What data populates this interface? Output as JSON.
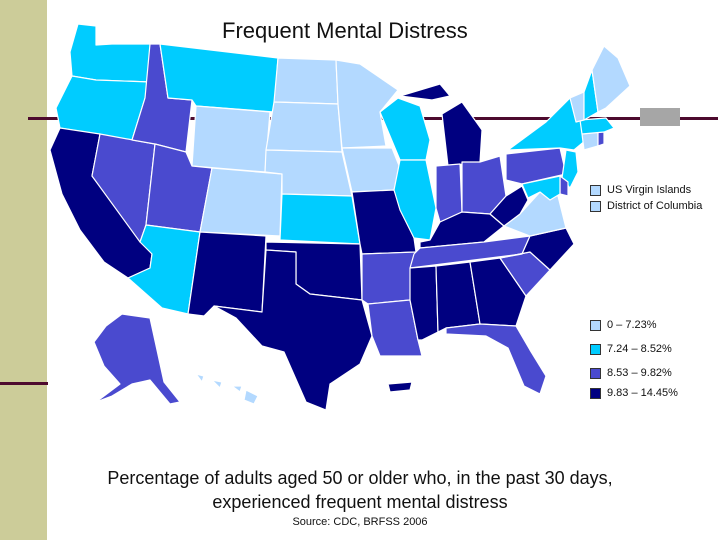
{
  "title": "Frequent Mental Distress",
  "caption": "Percentage of adults aged 50 or older who, in the past 30 days, experienced frequent mental distress",
  "source": "Source:  CDC, BRFSS 2006",
  "colors": {
    "class1": "#b3d9ff",
    "class2": "#00ccff",
    "class3": "#4a4acf",
    "class4": "#000080",
    "border": "#ffffff",
    "sidebar": "#cccc99",
    "rule": "#4d0a2e"
  },
  "territories": [
    {
      "label": "US Virgin Islands",
      "class": "class1"
    },
    {
      "label": "District of Columbia",
      "class": "class1"
    }
  ],
  "legend": [
    {
      "label": "0 – 7.23%",
      "class": "class1"
    },
    {
      "label": "7.24 – 8.52%",
      "class": "class2"
    },
    {
      "label": "8.53 – 9.82%",
      "class": "class3"
    },
    {
      "label": "9.83 – 14.45%",
      "class": "class4"
    }
  ],
  "states": [
    {
      "id": "WA",
      "class": "class2"
    },
    {
      "id": "OR",
      "class": "class2"
    },
    {
      "id": "CA",
      "class": "class4"
    },
    {
      "id": "NV",
      "class": "class3"
    },
    {
      "id": "ID",
      "class": "class3"
    },
    {
      "id": "MT",
      "class": "class2"
    },
    {
      "id": "WY",
      "class": "class1"
    },
    {
      "id": "UT",
      "class": "class3"
    },
    {
      "id": "AZ",
      "class": "class2"
    },
    {
      "id": "CO",
      "class": "class1"
    },
    {
      "id": "NM",
      "class": "class4"
    },
    {
      "id": "ND",
      "class": "class1"
    },
    {
      "id": "SD",
      "class": "class1"
    },
    {
      "id": "NE",
      "class": "class1"
    },
    {
      "id": "KS",
      "class": "class2"
    },
    {
      "id": "OK",
      "class": "class4"
    },
    {
      "id": "TX",
      "class": "class4"
    },
    {
      "id": "MN",
      "class": "class1"
    },
    {
      "id": "IA",
      "class": "class1"
    },
    {
      "id": "MO",
      "class": "class4"
    },
    {
      "id": "AR",
      "class": "class3"
    },
    {
      "id": "LA",
      "class": "class3"
    },
    {
      "id": "WI",
      "class": "class2"
    },
    {
      "id": "IL",
      "class": "class2"
    },
    {
      "id": "MI",
      "class": "class4"
    },
    {
      "id": "IN",
      "class": "class3"
    },
    {
      "id": "OH",
      "class": "class3"
    },
    {
      "id": "KY",
      "class": "class4"
    },
    {
      "id": "TN",
      "class": "class3"
    },
    {
      "id": "MS",
      "class": "class4"
    },
    {
      "id": "AL",
      "class": "class4"
    },
    {
      "id": "GA",
      "class": "class4"
    },
    {
      "id": "FL",
      "class": "class3"
    },
    {
      "id": "SC",
      "class": "class3"
    },
    {
      "id": "NC",
      "class": "class4"
    },
    {
      "id": "VA",
      "class": "class1"
    },
    {
      "id": "WV",
      "class": "class4"
    },
    {
      "id": "PA",
      "class": "class3"
    },
    {
      "id": "NY",
      "class": "class2"
    },
    {
      "id": "NJ",
      "class": "class2"
    },
    {
      "id": "DE",
      "class": "class3"
    },
    {
      "id": "MD",
      "class": "class2"
    },
    {
      "id": "CT",
      "class": "class1"
    },
    {
      "id": "RI",
      "class": "class3"
    },
    {
      "id": "MA",
      "class": "class2"
    },
    {
      "id": "VT",
      "class": "class1"
    },
    {
      "id": "NH",
      "class": "class2"
    },
    {
      "id": "ME",
      "class": "class1"
    },
    {
      "id": "AK",
      "class": "class3"
    },
    {
      "id": "HI",
      "class": "class1"
    },
    {
      "id": "PR",
      "class": "class4"
    }
  ]
}
